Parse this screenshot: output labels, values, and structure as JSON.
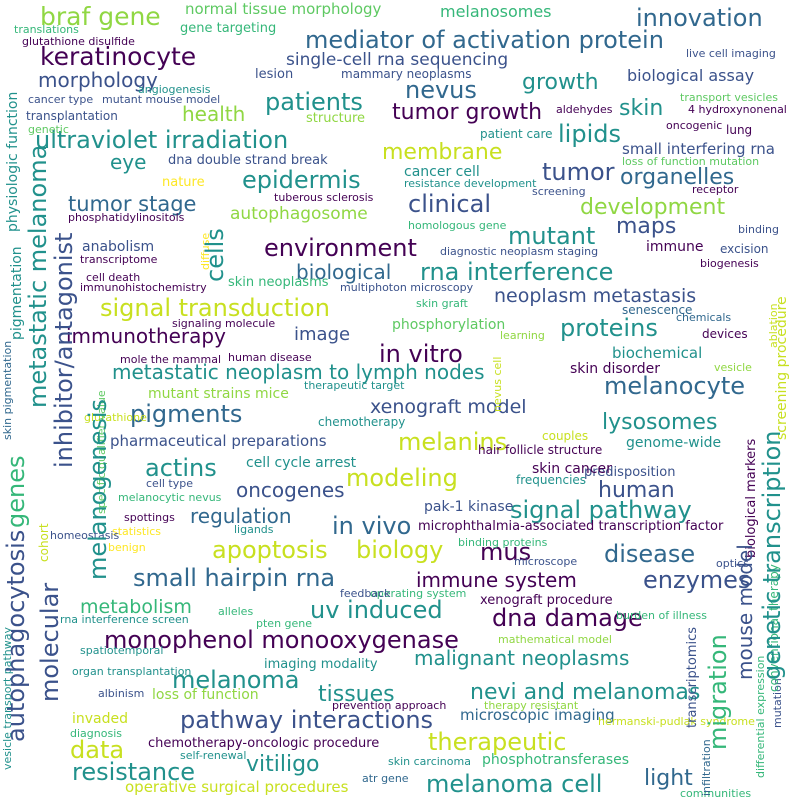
{
  "palette": {
    "dark_purple": "#440154",
    "indigo": "#3b528b",
    "blue": "#31688e",
    "teal": "#21918c",
    "green": "#35b779",
    "light_green": "#5ec962",
    "lime": "#90d743",
    "yellow": "#c8e020",
    "bright_yellow": "#fde725"
  },
  "words": [
    "braf gene",
    "normal tissue morphology",
    "melanosomes",
    "innovation",
    "gene targeting",
    "mediator of activation protein",
    "keratinocyte",
    "single-cell rna sequencing",
    "morphology",
    "lesion",
    "mammary neoplasms",
    "growth",
    "biological assay",
    "patients",
    "nevus",
    "health",
    "tumor growth",
    "skin",
    "ultraviolet irradiation",
    "lipids",
    "membrane",
    "eye",
    "dna double strand break",
    "tumor",
    "organelles",
    "cancer cell",
    "epidermis",
    "tumor stage",
    "clinical",
    "development",
    "autophagosome",
    "mutant",
    "maps",
    "environment",
    "anabolism",
    "biological",
    "rna interference",
    "signal transduction",
    "neoplasm metastasis",
    "proteins",
    "immunotherapy",
    "image",
    "in vitro",
    "metastatic neoplasm to lymph nodes",
    "melanocyte",
    "pigments",
    "xenograft model",
    "melanins",
    "lysosomes",
    "actins",
    "modeling",
    "oncogenes",
    "human",
    "signal pathway",
    "regulation",
    "in vivo",
    "apoptosis",
    "biology",
    "mus",
    "disease",
    "small hairpin rna",
    "immune system",
    "enzymes",
    "uv induced",
    "dna damage",
    "metabolism",
    "monophenol monooxygenase",
    "malignant neoplasms",
    "melanoma",
    "tissues",
    "nevi and melanomas",
    "pathway interactions",
    "data",
    "therapeutic",
    "resistance",
    "vitiligo",
    "light",
    "melanoma cell",
    "operative surgical procedures",
    "chemotherapy-oncologic procedure",
    "self-renewal",
    "skin carcinoma",
    "phosphotransferases",
    "atr gene",
    "microscopic imaging",
    "imaging modality",
    "loss of function",
    "invaded",
    "prevention approach",
    "therapy resistant",
    "hermanski-pudlak syndrome",
    "mathematical model",
    "burden of illness",
    "xenograft procedure",
    "operating system",
    "feedback",
    "alleles",
    "pten gene",
    "microscope",
    "binding proteins",
    "optics",
    "microphthalmia-associated transcription factor",
    "pak-1 kinase",
    "ligands",
    "frequencies",
    "predisposition",
    "skin cancer",
    "hair follicle structure",
    "couples",
    "genome-wide",
    "biochemical",
    "skin disorder",
    "vesicle",
    "therapeutic target",
    "human disease",
    "mutant strains mice",
    "chemotherapy",
    "pharmaceutical preparations",
    "cell cycle arrest",
    "cell type",
    "melanocytic nevus",
    "spottings",
    "statistics",
    "benign",
    "rna interference screen",
    "homeostasis",
    "spatiotemporal",
    "organ transplantation",
    "albinism",
    "diagnosis",
    "translations",
    "glutathione disulfide",
    "angiogenesis",
    "cancer type",
    "mutant mouse model",
    "transplantation",
    "genetic",
    "structure",
    "aldehydes",
    "4 hydroxynonenal",
    "oncogenic",
    "lung",
    "patient care",
    "small interfering rna",
    "loss of function mutation",
    "resistance development",
    "screening",
    "receptor",
    "binding",
    "tuberous sclerosis",
    "phosphatidylinositols",
    "nature",
    "homologous gene",
    "diagnostic neoplasm staging",
    "immune",
    "excision",
    "biogenesis",
    "transcriptome",
    "cell death",
    "immunohistochemistry",
    "skin neoplasms",
    "multiphoton microscopy",
    "skin graft",
    "senescence",
    "chemicals",
    "devices",
    "signaling molecule",
    "phosphorylation",
    "learning",
    "mole the mammal",
    "glutathione",
    "live cell imaging",
    "transport vesicles",
    "screening procedure",
    "biological markers",
    "ablation",
    "mutation",
    "communities",
    "infiltration",
    "transcriptomics",
    "differential expression",
    "conventional therapy",
    "nevus cell",
    "specific qualifier value",
    "skin pigmentation",
    "cohort",
    "vesicle transport pathway",
    "diffuse"
  ],
  "vertical_words": [
    "physiologic function",
    "pigmentation",
    "metastatic melanoma",
    "inhibitor/antagonist",
    "genes",
    "cells",
    "melanogenesis",
    "molecular",
    "autophagocytosis",
    "genetic transcription",
    "mouse model",
    "migration"
  ]
}
